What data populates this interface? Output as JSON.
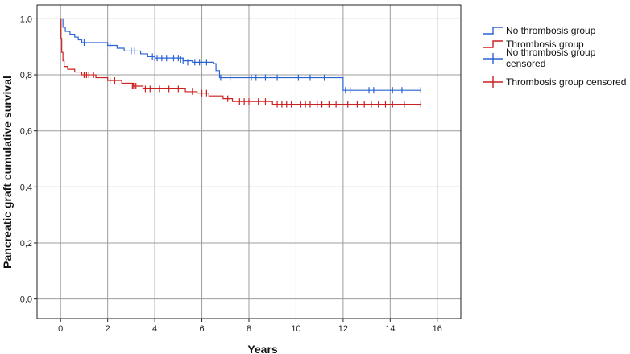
{
  "chart_data": {
    "type": "line",
    "xlabel": "Years",
    "ylabel": "Pancreatic graft cumulative survival",
    "xlim": [
      -1,
      17
    ],
    "ylim": [
      -0.07,
      1.05
    ],
    "x_ticks": [
      0,
      2,
      4,
      6,
      8,
      10,
      12,
      14,
      16
    ],
    "x_tick_labels": [
      "0",
      "2",
      "4",
      "6",
      "8",
      "10",
      "12",
      "14",
      "16"
    ],
    "y_ticks": [
      0.0,
      0.2,
      0.4,
      0.6,
      0.8,
      1.0
    ],
    "y_tick_labels": [
      "0,0",
      "0,2",
      "0,4",
      "0,6",
      "0,8",
      "1,0"
    ],
    "grid": true,
    "legend_position": "right",
    "legend": [
      {
        "label": "No thrombosis group",
        "kind": "step",
        "color": "#2a63d4"
      },
      {
        "label": "Thrombosis group",
        "kind": "step",
        "color": "#cc1f1f"
      },
      {
        "label": " No thrombosis group censored",
        "kind": "censor",
        "color": "#2a63d4"
      },
      {
        "label": "Thrombosis group censored",
        "kind": "censor",
        "color": "#cc1f1f"
      }
    ],
    "series": [
      {
        "name": "No thrombosis group",
        "color": "#2a63d4",
        "steps": [
          [
            0,
            1.0
          ],
          [
            0.1,
            0.97
          ],
          [
            0.2,
            0.955
          ],
          [
            0.4,
            0.945
          ],
          [
            0.6,
            0.935
          ],
          [
            0.75,
            0.925
          ],
          [
            0.9,
            0.915
          ],
          [
            2.0,
            0.905
          ],
          [
            2.4,
            0.895
          ],
          [
            2.7,
            0.885
          ],
          [
            3.4,
            0.875
          ],
          [
            3.7,
            0.865
          ],
          [
            4.0,
            0.86
          ],
          [
            5.2,
            0.85
          ],
          [
            5.6,
            0.845
          ],
          [
            6.5,
            0.84
          ],
          [
            6.6,
            0.815
          ],
          [
            6.75,
            0.79
          ],
          [
            12.0,
            0.745
          ],
          [
            15.3,
            0.745
          ]
        ],
        "censored": [
          [
            1.0,
            0.915
          ],
          [
            2.1,
            0.905
          ],
          [
            3.0,
            0.885
          ],
          [
            3.15,
            0.885
          ],
          [
            3.9,
            0.865
          ],
          [
            4.0,
            0.86
          ],
          [
            4.1,
            0.86
          ],
          [
            4.3,
            0.86
          ],
          [
            4.5,
            0.86
          ],
          [
            4.8,
            0.86
          ],
          [
            5.0,
            0.86
          ],
          [
            5.1,
            0.855
          ],
          [
            5.2,
            0.85
          ],
          [
            5.4,
            0.845
          ],
          [
            5.7,
            0.845
          ],
          [
            5.9,
            0.845
          ],
          [
            6.2,
            0.845
          ],
          [
            6.8,
            0.79
          ],
          [
            7.2,
            0.79
          ],
          [
            8.1,
            0.79
          ],
          [
            8.3,
            0.79
          ],
          [
            8.7,
            0.79
          ],
          [
            9.2,
            0.79
          ],
          [
            10.1,
            0.79
          ],
          [
            10.6,
            0.79
          ],
          [
            11.2,
            0.79
          ],
          [
            12.1,
            0.745
          ],
          [
            12.3,
            0.745
          ],
          [
            13.1,
            0.745
          ],
          [
            13.3,
            0.745
          ],
          [
            14.1,
            0.745
          ],
          [
            14.5,
            0.745
          ],
          [
            15.3,
            0.745
          ]
        ]
      },
      {
        "name": "Thrombosis group",
        "color": "#cc1f1f",
        "steps": [
          [
            0,
            1.0
          ],
          [
            0.02,
            0.93
          ],
          [
            0.05,
            0.88
          ],
          [
            0.1,
            0.85
          ],
          [
            0.15,
            0.83
          ],
          [
            0.3,
            0.82
          ],
          [
            0.6,
            0.81
          ],
          [
            0.9,
            0.8
          ],
          [
            1.5,
            0.79
          ],
          [
            2.0,
            0.78
          ],
          [
            2.6,
            0.77
          ],
          [
            3.1,
            0.76
          ],
          [
            3.5,
            0.75
          ],
          [
            5.3,
            0.74
          ],
          [
            5.8,
            0.735
          ],
          [
            6.3,
            0.725
          ],
          [
            6.9,
            0.715
          ],
          [
            7.3,
            0.705
          ],
          [
            9.0,
            0.695
          ],
          [
            15.3,
            0.695
          ]
        ],
        "censored": [
          [
            1.0,
            0.8
          ],
          [
            1.1,
            0.8
          ],
          [
            1.2,
            0.8
          ],
          [
            1.4,
            0.8
          ],
          [
            2.1,
            0.78
          ],
          [
            2.3,
            0.78
          ],
          [
            3.05,
            0.76
          ],
          [
            3.1,
            0.76
          ],
          [
            3.2,
            0.76
          ],
          [
            3.6,
            0.75
          ],
          [
            3.8,
            0.75
          ],
          [
            4.2,
            0.75
          ],
          [
            4.6,
            0.75
          ],
          [
            5.0,
            0.75
          ],
          [
            5.6,
            0.74
          ],
          [
            6.0,
            0.735
          ],
          [
            6.2,
            0.735
          ],
          [
            7.1,
            0.715
          ],
          [
            7.6,
            0.705
          ],
          [
            7.8,
            0.705
          ],
          [
            8.0,
            0.705
          ],
          [
            8.4,
            0.705
          ],
          [
            8.7,
            0.705
          ],
          [
            9.2,
            0.695
          ],
          [
            9.4,
            0.695
          ],
          [
            9.6,
            0.695
          ],
          [
            9.8,
            0.695
          ],
          [
            10.2,
            0.695
          ],
          [
            10.4,
            0.695
          ],
          [
            10.6,
            0.695
          ],
          [
            10.9,
            0.695
          ],
          [
            11.1,
            0.695
          ],
          [
            11.4,
            0.695
          ],
          [
            11.7,
            0.695
          ],
          [
            12.2,
            0.695
          ],
          [
            12.6,
            0.695
          ],
          [
            12.9,
            0.695
          ],
          [
            13.2,
            0.695
          ],
          [
            13.5,
            0.695
          ],
          [
            13.8,
            0.695
          ],
          [
            14.1,
            0.695
          ],
          [
            14.6,
            0.695
          ],
          [
            15.3,
            0.695
          ]
        ]
      }
    ]
  }
}
